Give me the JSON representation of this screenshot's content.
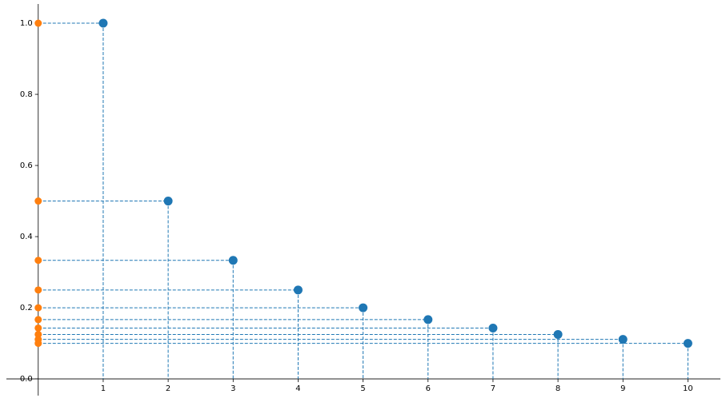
{
  "chart_data": {
    "type": "scatter",
    "series": [
      {
        "color": "#1f77b4",
        "x": [
          1,
          2,
          3,
          4,
          5,
          6,
          7,
          8,
          9,
          10
        ],
        "values": [
          1.0,
          0.5,
          0.3333,
          0.25,
          0.2,
          0.1667,
          0.1429,
          0.125,
          0.1111,
          0.1
        ]
      },
      {
        "color": "#ff7f0e",
        "x": [
          0,
          0,
          0,
          0,
          0,
          0,
          0,
          0,
          0,
          0
        ],
        "values": [
          1.0,
          0.5,
          0.3333,
          0.25,
          0.2,
          0.1667,
          0.1429,
          0.125,
          0.1111,
          0.1
        ]
      }
    ],
    "guide_lines": "dashed",
    "xlim": [
      -0.49,
      10.5
    ],
    "ylim": [
      -0.047,
      1.054
    ],
    "xticks": [
      1,
      2,
      3,
      4,
      5,
      6,
      7,
      8,
      9,
      10
    ],
    "yticks": [
      {
        "value": 0,
        "label": "0.0"
      },
      0.2,
      0.4,
      0.6,
      0.8,
      {
        "value": 1,
        "label": "1.0"
      }
    ]
  }
}
